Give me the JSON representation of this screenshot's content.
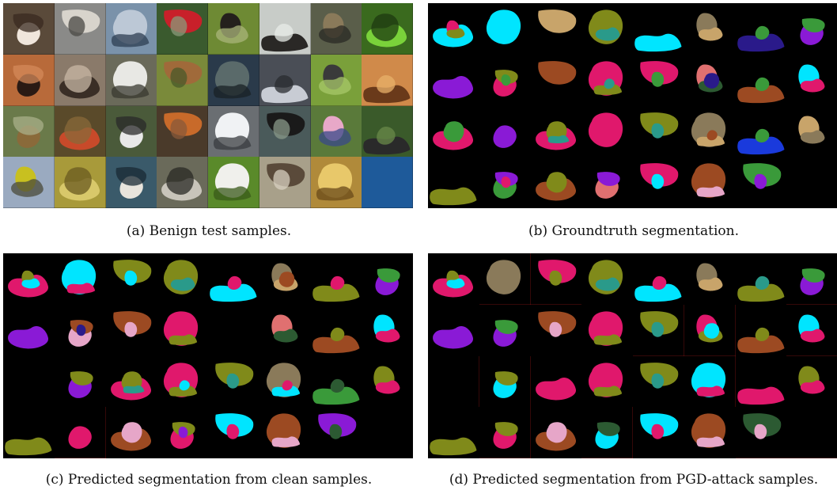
{
  "captions": {
    "a": "(a) Benign test samples.",
    "b": "(b) Groundtruth segmentation.",
    "c": "(c) Predicted segmentation from clean samples.",
    "d": "(d) Predicted segmentation from PGD-attack samples."
  },
  "colors": {
    "background": "#000000",
    "highlight": "#d02020",
    "cyan": "#00e5ff",
    "magenta": "#e0186c",
    "olive": "#808a1a",
    "purple": "#8a1ad6",
    "green": "#3a9a3a",
    "brown": "#9c4a22",
    "tan": "#c8a46a",
    "pink": "#e6a6c8",
    "teal": "#2a9a8a",
    "darkgreen": "#2c5a32",
    "navy": "#2a1a8a",
    "salmon": "#e07070",
    "khaki": "#8a7a5a",
    "blue": "#1a3adc"
  },
  "panels": {
    "a": {
      "kind": "photo",
      "cells": [
        [
          "#5a4a3a",
          "#f0e6dc",
          "#3a2a20"
        ],
        [
          "#8a8a88",
          "#d8d4cc",
          "#4a4844"
        ],
        [
          "#7a92aa",
          "#bcc8d6",
          "#2e3e52"
        ],
        [
          "#3a5a2e",
          "#c8202a",
          "#8a9a7a"
        ],
        [
          "#6e8a34",
          "#24201c",
          "#aab47a"
        ],
        [
          "#c8ccc8",
          "#2a2826",
          "#e8ece8"
        ],
        [
          "#5a5e4a",
          "#8a7a5a",
          "#2a2a24"
        ],
        [
          "#3a6a1e",
          "#7ad23a",
          "#1e3a10"
        ],
        [
          "#b86a3a",
          "#2a1a14",
          "#d48a5a"
        ],
        [
          "#8a7a6a",
          "#3a2e26",
          "#c8b8a6"
        ],
        [
          "#6a6a5a",
          "#e8e8e4",
          "#3a3a30"
        ],
        [
          "#7a8a3a",
          "#a06a3a",
          "#4a5a2a"
        ],
        [
          "#2a3a4a",
          "#5a6a6a",
          "#1a2226"
        ],
        [
          "#4a4e56",
          "#c8ccd4",
          "#2a2c30"
        ],
        [
          "#7aa03a",
          "#3a3a3a",
          "#a8c86a"
        ],
        [
          "#d08a4a",
          "#6a3a1a",
          "#e8b06a"
        ],
        [
          "#6a7a4a",
          "#8a6a3a",
          "#aab08a"
        ],
        [
          "#5a4a2a",
          "#c84a2a",
          "#8a6a3a"
        ],
        [
          "#4a5a3a",
          "#e8e8e8",
          "#2a2a2a"
        ],
        [
          "#4a3a2a",
          "#c86a2a",
          "#8a5a3a"
        ],
        [
          "#6a6e72",
          "#f0f2f4",
          "#3a3c40"
        ],
        [
          "#4a5a5a",
          "#1a1a1a",
          "#8a9a8a"
        ],
        [
          "#5a7a3a",
          "#e8a8c8",
          "#3a4a8a"
        ],
        [
          "#3a5a2a",
          "#2a2a2a",
          "#6a8a4a"
        ],
        [
          "#9aaac0",
          "#c8c020",
          "#4a4a3a"
        ],
        [
          "#a89a3a",
          "#d8c86a",
          "#6a5a20"
        ],
        [
          "#3a5a6a",
          "#e8e4dc",
          "#1a2a34"
        ],
        [
          "#6a6a5a",
          "#c8c4ba",
          "#2a2a24"
        ],
        [
          "#5a8a2a",
          "#f0f0ec",
          "#3a5a1a"
        ],
        [
          "#a8a08a",
          "#5a4a3a",
          "#d8d0c0"
        ],
        [
          "#b08a3a",
          "#e8c86a",
          "#6a4a1a"
        ],
        [
          "#1e5a9a",
          "#1e5a9a",
          "#1e5a9a"
        ]
      ]
    },
    "b": {
      "kind": "segmentation",
      "cells": [
        [
          "cyan",
          "magenta",
          "olive"
        ],
        [
          "cyan"
        ],
        [
          "tan"
        ],
        [
          "olive",
          "teal"
        ],
        [
          "cyan"
        ],
        [
          "khaki",
          "tan"
        ],
        [
          "navy",
          "green"
        ],
        [
          "purple",
          "green"
        ],
        [
          "purple"
        ],
        [
          "magenta",
          "olive",
          "green"
        ],
        [
          "brown"
        ],
        [
          "magenta",
          "olive",
          "teal"
        ],
        [
          "magenta",
          "green"
        ],
        [
          "salmon",
          "darkgreen",
          "navy"
        ],
        [
          "brown",
          "green"
        ],
        [
          "cyan",
          "magenta"
        ],
        [
          "magenta",
          "green"
        ],
        [
          "purple"
        ],
        [
          "magenta",
          "olive",
          "teal"
        ],
        [
          "magenta"
        ],
        [
          "olive",
          "teal"
        ],
        [
          "khaki",
          "tan",
          "brown"
        ],
        [
          "blue",
          "green"
        ],
        [
          "tan",
          "khaki"
        ],
        [
          "olive"
        ],
        [
          "green",
          "purple",
          "magenta"
        ],
        [
          "brown",
          "olive"
        ],
        [
          "salmon",
          "purple"
        ],
        [
          "magenta",
          "cyan"
        ],
        [
          "brown",
          "pink"
        ],
        [
          "green",
          "purple"
        ],
        []
      ],
      "flags": []
    },
    "c": {
      "kind": "segmentation",
      "cells": [
        [
          "magenta",
          "olive",
          "cyan"
        ],
        [
          "cyan",
          "magenta"
        ],
        [
          "olive",
          "cyan"
        ],
        [
          "olive",
          "teal"
        ],
        [
          "cyan",
          "magenta"
        ],
        [
          "khaki",
          "tan",
          "brown"
        ],
        [
          "olive",
          "magenta"
        ],
        [
          "purple",
          "green"
        ],
        [
          "purple"
        ],
        [
          "pink",
          "brown",
          "navy"
        ],
        [
          "brown",
          "pink"
        ],
        [
          "magenta",
          "olive"
        ],
        [],
        [
          "salmon",
          "darkgreen"
        ],
        [
          "brown",
          "olive"
        ],
        [
          "cyan",
          "magenta"
        ],
        [],
        [
          "purple",
          "olive"
        ],
        [
          "magenta",
          "olive",
          "teal"
        ],
        [
          "magenta",
          "olive",
          "cyan"
        ],
        [
          "olive",
          "teal"
        ],
        [
          "khaki",
          "cyan",
          "magenta"
        ],
        [
          "green",
          "darkgreen"
        ],
        [
          "olive",
          "magenta"
        ],
        [
          "olive"
        ],
        [
          "magenta"
        ],
        [
          "brown",
          "pink"
        ],
        [
          "magenta",
          "olive",
          "purple"
        ],
        [
          "cyan",
          "magenta"
        ],
        [
          "brown",
          "pink"
        ],
        [
          "purple",
          "darkgreen"
        ],
        []
      ],
      "flags": [
        25
      ]
    },
    "d": {
      "kind": "segmentation",
      "cells": [
        [
          "magenta",
          "olive",
          "cyan"
        ],
        [
          "khaki"
        ],
        [
          "magenta",
          "olive"
        ],
        [
          "olive",
          "teal"
        ],
        [
          "cyan",
          "magenta"
        ],
        [
          "khaki",
          "tan"
        ],
        [
          "olive",
          "teal"
        ],
        [
          "purple",
          "green"
        ],
        [
          "purple"
        ],
        [
          "purple",
          "green"
        ],
        [
          "brown",
          "pink"
        ],
        [
          "magenta",
          "olive"
        ],
        [
          "olive",
          "teal"
        ],
        [
          "magenta",
          "olive",
          "cyan"
        ],
        [
          "brown",
          "olive"
        ],
        [
          "cyan",
          "magenta"
        ],
        [],
        [
          "cyan",
          "olive"
        ],
        [
          "magenta"
        ],
        [
          "magenta",
          "olive"
        ],
        [
          "olive",
          "teal"
        ],
        [
          "cyan",
          "magenta"
        ],
        [
          "magenta"
        ],
        [
          "olive",
          "magenta"
        ],
        [
          "olive"
        ],
        [
          "magenta",
          "olive"
        ],
        [
          "brown",
          "pink"
        ],
        [
          "cyan",
          "darkgreen"
        ],
        [
          "cyan",
          "magenta"
        ],
        [
          "brown",
          "pink"
        ],
        [
          "darkgreen",
          "pink"
        ],
        []
      ],
      "flags": [
        1,
        2,
        7,
        12,
        13,
        15,
        16,
        17,
        21,
        23,
        25,
        27,
        30,
        31
      ]
    }
  }
}
